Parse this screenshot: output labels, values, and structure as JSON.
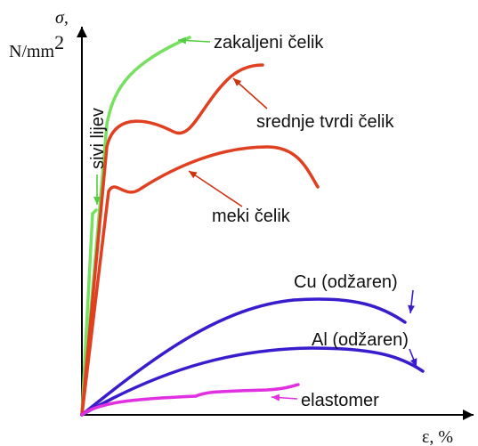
{
  "axes": {
    "y_symbol": "σ,",
    "y_unit": "N/mm",
    "y_unit_exponent": "2",
    "x_label": "ε, %"
  },
  "curves": [
    {
      "label": "zakaljeni čelik"
    },
    {
      "label": "srednje tvrdi čelik"
    },
    {
      "label": "meki čelik"
    },
    {
      "label": "sivi lijev"
    },
    {
      "label": "Cu (odžaren)"
    },
    {
      "label": "Al (odžaren)"
    },
    {
      "label": "elastomer"
    }
  ]
}
